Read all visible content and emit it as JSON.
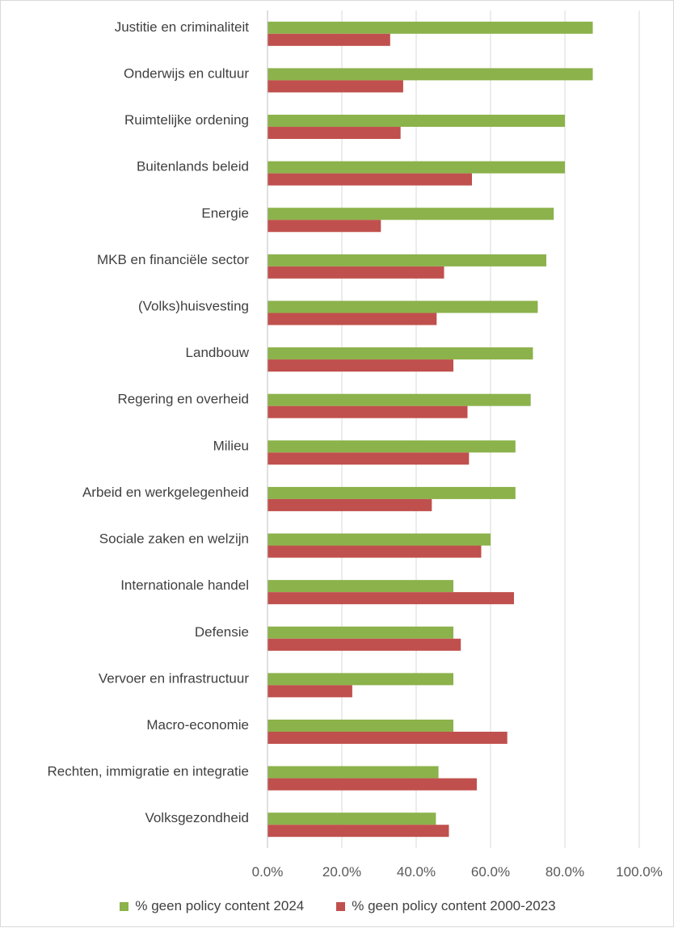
{
  "chart_data": {
    "type": "bar",
    "orientation": "horizontal",
    "categories": [
      "Justitie en criminaliteit",
      "Onderwijs en cultuur",
      "Ruimtelijke ordening",
      "Buitenlands beleid",
      "Energie",
      "MKB en financiële sector",
      "(Volks)huisvesting",
      "Landbouw",
      "Regering en overheid",
      "Milieu",
      "Arbeid en werkgelegenheid",
      "Sociale zaken en welzijn",
      "Internationale handel",
      "Defensie",
      "Vervoer en infrastructuur",
      "Macro-economie",
      "Rechten, immigratie en integratie",
      "Volksgezondheid"
    ],
    "series": [
      {
        "name": "% geen policy content 2024",
        "color": "#8cb24b",
        "values": [
          87.5,
          87.5,
          80.0,
          80.0,
          77.0,
          75.0,
          72.7,
          71.4,
          70.8,
          66.7,
          66.7,
          60.0,
          50.0,
          50.0,
          50.0,
          50.0,
          46.0,
          45.3
        ]
      },
      {
        "name": "% geen policy content 2000-2023",
        "color": "#c0504d",
        "values": [
          33.0,
          36.5,
          35.8,
          55.0,
          30.5,
          47.5,
          45.5,
          50.0,
          53.8,
          54.2,
          44.2,
          57.5,
          66.3,
          52.0,
          22.8,
          64.5,
          56.3,
          48.8
        ]
      }
    ],
    "xlim": [
      0,
      100
    ],
    "xticks": [
      "0.0%",
      "20.0%",
      "40.0%",
      "60.0%",
      "80.0%",
      "100.0%"
    ],
    "grid": true,
    "legend_position": "bottom"
  }
}
